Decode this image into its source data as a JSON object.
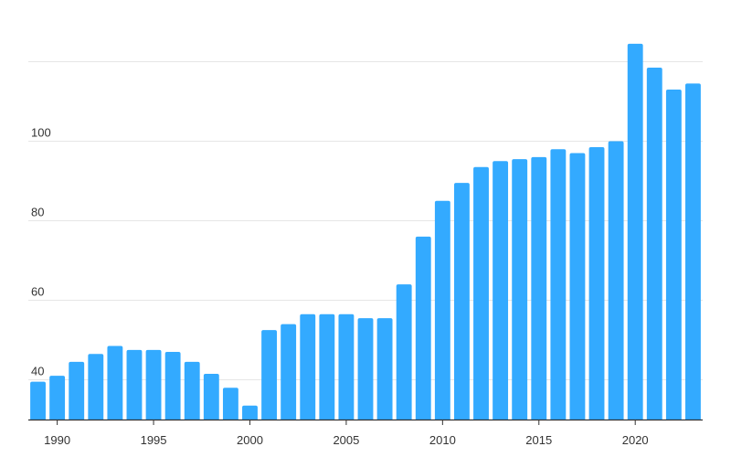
{
  "chart_data": {
    "type": "bar",
    "title": "",
    "xlabel": "",
    "ylabel": "",
    "bar_color": "#33aaff",
    "ylim": [
      30,
      125
    ],
    "yticks": [
      40,
      60,
      80,
      100
    ],
    "ytick_labels": [
      "40",
      "60",
      "80",
      "100"
    ],
    "xticks": [
      "1990",
      "1995",
      "2000",
      "2005",
      "2010",
      "2015",
      "2020"
    ],
    "grid": true,
    "categories": [
      1989,
      1990,
      1991,
      1992,
      1993,
      1994,
      1995,
      1996,
      1997,
      1998,
      1999,
      2000,
      2001,
      2002,
      2003,
      2004,
      2005,
      2006,
      2007,
      2008,
      2009,
      2010,
      2011,
      2012,
      2013,
      2014,
      2015,
      2016,
      2017,
      2018,
      2019,
      2020,
      2021,
      2022,
      2023
    ],
    "values": [
      39.5,
      41,
      44.5,
      46.5,
      48.5,
      47.5,
      47.5,
      47,
      44.5,
      41.5,
      38,
      33.5,
      52.5,
      54,
      56.5,
      56.5,
      56.5,
      55.5,
      55.5,
      64,
      76,
      85,
      89.5,
      93.5,
      95,
      95.5,
      96,
      98,
      97,
      98.5,
      100,
      124.5,
      118.5,
      113,
      114.5
    ]
  }
}
